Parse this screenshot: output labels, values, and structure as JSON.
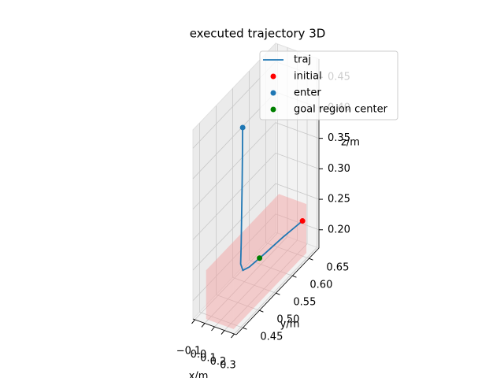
{
  "chart_data": {
    "type": "line3d",
    "title": "executed trajectory 3D",
    "xlabel": "x/m",
    "ylabel": "y/m",
    "zlabel": "z/m",
    "xlim": [
      -0.12,
      0.32
    ],
    "ylim": [
      0.43,
      0.68
    ],
    "zlim": [
      0.17,
      0.48
    ],
    "xticks": [
      {
        "value": -0.1,
        "label": "−0.1"
      },
      {
        "value": 0.0,
        "label": "0.0"
      },
      0.1,
      0.2,
      0.3
    ],
    "yticks": [
      0.45,
      {
        "value": 0.5,
        "label": "0.50"
      },
      0.55,
      {
        "value": 0.6,
        "label": "0.60"
      },
      0.65
    ],
    "zticks": [
      {
        "value": 0.2,
        "label": "0.20"
      },
      0.25,
      {
        "value": 0.3,
        "label": "0.30"
      },
      0.35,
      {
        "value": 0.4,
        "label": "0.40"
      },
      0.45
    ],
    "grid": true,
    "legend": "upper right",
    "goal_region": {
      "color": "#f4a0a0",
      "xlim": [
        -0.02,
        0.26
      ],
      "ylim": [
        0.44,
        0.66
      ],
      "zlim": [
        0.17,
        0.25
      ]
    },
    "series": [
      {
        "name": "traj",
        "kind": "line",
        "color": "#1f77b4",
        "x": [
          0.15,
          0.148,
          0.145,
          0.14,
          0.135,
          0.13,
          0.135,
          0.15,
          0.17,
          0.19,
          0.22
        ],
        "y": [
          0.5,
          0.5,
          0.5,
          0.5,
          0.5,
          0.5,
          0.505,
          0.52,
          0.56,
          0.61,
          0.66
        ],
        "z": [
          0.46,
          0.42,
          0.37,
          0.32,
          0.27,
          0.235,
          0.222,
          0.22,
          0.22,
          0.22,
          0.22
        ]
      },
      {
        "name": "initial",
        "kind": "point",
        "color": "#ff0000",
        "x": [
          0.22
        ],
        "y": [
          0.66
        ],
        "z": [
          0.22
        ]
      },
      {
        "name": "enter",
        "kind": "point",
        "color": "#1f77b4",
        "x": [
          0.15
        ],
        "y": [
          0.5
        ],
        "z": [
          0.46
        ]
      },
      {
        "name": "goal region center",
        "kind": "point",
        "color": "#008000",
        "x": [
          0.12
        ],
        "y": [
          0.56
        ],
        "z": [
          0.21
        ]
      }
    ]
  }
}
